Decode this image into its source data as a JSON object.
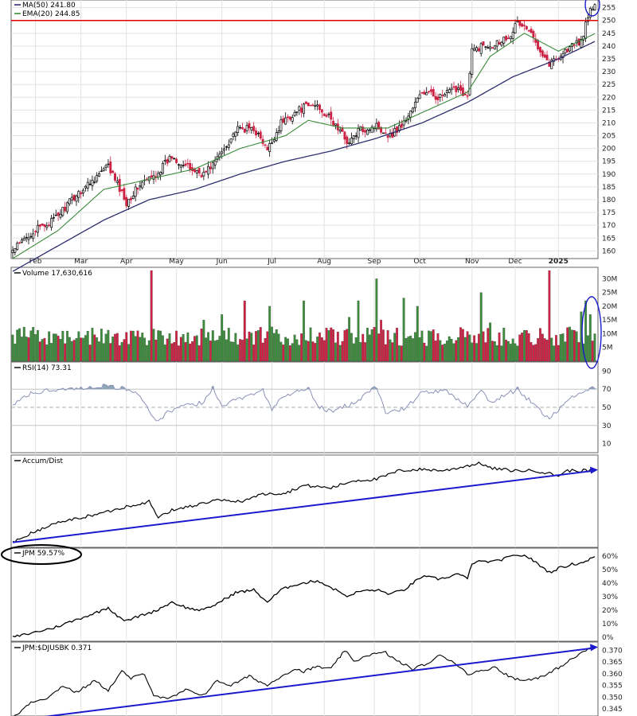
{
  "colors": {
    "up": "#3d8b3d",
    "down": "#cc2244",
    "ma50": "#2f2f6f",
    "ema20": "#3a8a3a",
    "resistance": "#e00000",
    "trend": "#1a1acc",
    "rsi": "#8a90b8",
    "rsi_fill": "#8ea6b8",
    "line": "#000000",
    "grid": "#e3e3e3",
    "panel_border": "#666666"
  },
  "chart_data": [
    {
      "panel": "price",
      "type": "candlestick",
      "legend": [
        {
          "label": "MA(50) 241.80",
          "color_key": "ma50"
        },
        {
          "label": "EMA(20) 244.85",
          "color_key": "ema20"
        }
      ],
      "x_tick_labels": [
        "Feb",
        "Mar",
        "Apr",
        "May",
        "Jun",
        "Jul",
        "Aug",
        "Sep",
        "Oct",
        "Nov",
        "Dec",
        "2025"
      ],
      "y_ticks": [
        160,
        165,
        170,
        175,
        180,
        185,
        190,
        195,
        200,
        205,
        210,
        215,
        220,
        225,
        230,
        235,
        240,
        245,
        250,
        255
      ],
      "ylim": [
        157,
        258
      ],
      "resistance_level": 250,
      "close_anchors": [
        [
          0,
          160
        ],
        [
          8,
          167
        ],
        [
          18,
          172
        ],
        [
          28,
          182
        ],
        [
          38,
          190
        ],
        [
          42,
          193
        ],
        [
          46,
          186
        ],
        [
          50,
          179
        ],
        [
          56,
          186
        ],
        [
          62,
          189
        ],
        [
          70,
          197
        ],
        [
          78,
          192
        ],
        [
          84,
          190
        ],
        [
          90,
          196
        ],
        [
          98,
          207
        ],
        [
          106,
          208
        ],
        [
          112,
          199
        ],
        [
          118,
          210
        ],
        [
          124,
          214
        ],
        [
          128,
          216
        ],
        [
          134,
          217
        ],
        [
          142,
          209
        ],
        [
          148,
          202
        ],
        [
          152,
          207
        ],
        [
          160,
          209
        ],
        [
          166,
          205
        ],
        [
          172,
          210
        ],
        [
          180,
          222
        ],
        [
          188,
          220
        ],
        [
          196,
          224
        ],
        [
          200,
          220
        ],
        [
          202,
          238
        ],
        [
          206,
          240
        ],
        [
          212,
          241
        ],
        [
          218,
          244
        ],
        [
          222,
          249
        ],
        [
          226,
          247
        ],
        [
          232,
          239
        ],
        [
          236,
          233
        ],
        [
          240,
          236
        ],
        [
          246,
          240
        ],
        [
          250,
          242
        ],
        [
          254,
          254
        ],
        [
          256,
          256
        ]
      ],
      "ma50_anchors": [
        [
          0,
          152
        ],
        [
          20,
          162
        ],
        [
          40,
          172
        ],
        [
          60,
          180
        ],
        [
          80,
          184
        ],
        [
          100,
          190
        ],
        [
          120,
          195
        ],
        [
          140,
          199
        ],
        [
          160,
          204
        ],
        [
          180,
          210
        ],
        [
          200,
          218
        ],
        [
          220,
          228
        ],
        [
          240,
          235
        ],
        [
          256,
          241.8
        ]
      ],
      "ema20_anchors": [
        [
          0,
          157
        ],
        [
          20,
          168
        ],
        [
          40,
          184
        ],
        [
          50,
          186
        ],
        [
          60,
          188
        ],
        [
          80,
          192
        ],
        [
          100,
          200
        ],
        [
          120,
          205
        ],
        [
          130,
          211
        ],
        [
          145,
          208
        ],
        [
          165,
          208
        ],
        [
          180,
          214
        ],
        [
          200,
          222
        ],
        [
          210,
          236
        ],
        [
          225,
          245
        ],
        [
          240,
          238
        ],
        [
          256,
          244.85
        ]
      ],
      "annotation": "ellipse-around-latest-price"
    },
    {
      "panel": "volume",
      "type": "bar",
      "label": "Volume 17,630,616",
      "y_tick_labels": [
        "5M",
        "10M",
        "15M",
        "20M",
        "25M",
        "30M"
      ],
      "ylim": [
        0,
        33
      ],
      "base_millions": 10,
      "spikes_millions": [
        [
          61,
          33
        ],
        [
          84,
          15
        ],
        [
          92,
          17
        ],
        [
          102,
          22
        ],
        [
          113,
          20
        ],
        [
          128,
          22
        ],
        [
          148,
          16
        ],
        [
          152,
          22
        ],
        [
          160,
          30
        ],
        [
          162,
          15
        ],
        [
          172,
          23
        ],
        [
          178,
          20
        ],
        [
          206,
          25
        ],
        [
          210,
          14
        ],
        [
          236,
          33
        ],
        [
          250,
          18
        ],
        [
          252,
          22
        ],
        [
          254,
          17
        ]
      ],
      "annotation": "ellipse-around-latest-volume"
    },
    {
      "panel": "rsi",
      "type": "line",
      "label": "RSI(14) 73.31",
      "y_tick_labels": [
        "10",
        "30",
        "50",
        "70",
        "90"
      ],
      "ylim": [
        0,
        100
      ],
      "reference_levels": [
        30,
        50,
        70
      ],
      "anchors": [
        [
          0,
          52
        ],
        [
          8,
          66
        ],
        [
          20,
          70
        ],
        [
          30,
          71
        ],
        [
          40,
          74
        ],
        [
          50,
          70
        ],
        [
          56,
          64
        ],
        [
          60,
          46
        ],
        [
          64,
          33
        ],
        [
          68,
          44
        ],
        [
          76,
          52
        ],
        [
          84,
          55
        ],
        [
          88,
          73
        ],
        [
          92,
          52
        ],
        [
          98,
          58
        ],
        [
          110,
          70
        ],
        [
          114,
          46
        ],
        [
          118,
          61
        ],
        [
          130,
          71
        ],
        [
          134,
          52
        ],
        [
          140,
          45
        ],
        [
          150,
          55
        ],
        [
          160,
          73
        ],
        [
          164,
          44
        ],
        [
          172,
          48
        ],
        [
          180,
          66
        ],
        [
          190,
          68
        ],
        [
          200,
          52
        ],
        [
          206,
          70
        ],
        [
          210,
          55
        ],
        [
          222,
          70
        ],
        [
          232,
          46
        ],
        [
          236,
          38
        ],
        [
          244,
          58
        ],
        [
          256,
          73
        ]
      ]
    },
    {
      "panel": "accum_dist",
      "type": "line",
      "label": "Accum/Dist",
      "anchors": [
        [
          0,
          4
        ],
        [
          10,
          13
        ],
        [
          20,
          20
        ],
        [
          30,
          24
        ],
        [
          40,
          28
        ],
        [
          50,
          33
        ],
        [
          60,
          37
        ],
        [
          64,
          24
        ],
        [
          70,
          30
        ],
        [
          80,
          34
        ],
        [
          90,
          38
        ],
        [
          100,
          37
        ],
        [
          110,
          43
        ],
        [
          120,
          44
        ],
        [
          128,
          50
        ],
        [
          140,
          48
        ],
        [
          150,
          54
        ],
        [
          160,
          55
        ],
        [
          170,
          62
        ],
        [
          180,
          63
        ],
        [
          190,
          62
        ],
        [
          200,
          66
        ],
        [
          206,
          68
        ],
        [
          210,
          64
        ],
        [
          220,
          62
        ],
        [
          230,
          62
        ],
        [
          240,
          58
        ],
        [
          244,
          62
        ],
        [
          256,
          62
        ]
      ],
      "trendline": [
        [
          0,
          4
        ],
        [
          256,
          62
        ]
      ]
    },
    {
      "panel": "performance",
      "type": "line",
      "label": "JPM 59.57%",
      "y_tick_labels": [
        "0%",
        "10%",
        "20%",
        "30%",
        "40%",
        "50%",
        "60%"
      ],
      "ylim": [
        0,
        63
      ],
      "anchors": [
        [
          0,
          0
        ],
        [
          8,
          3
        ],
        [
          18,
          7
        ],
        [
          28,
          13
        ],
        [
          38,
          19
        ],
        [
          42,
          22
        ],
        [
          46,
          16
        ],
        [
          50,
          12
        ],
        [
          56,
          16
        ],
        [
          62,
          19
        ],
        [
          70,
          26
        ],
        [
          78,
          21
        ],
        [
          84,
          20
        ],
        [
          90,
          25
        ],
        [
          98,
          33
        ],
        [
          106,
          35
        ],
        [
          112,
          26
        ],
        [
          118,
          35
        ],
        [
          124,
          39
        ],
        [
          128,
          40
        ],
        [
          134,
          42
        ],
        [
          142,
          35
        ],
        [
          148,
          30
        ],
        [
          152,
          34
        ],
        [
          160,
          35
        ],
        [
          166,
          32
        ],
        [
          172,
          35
        ],
        [
          180,
          45
        ],
        [
          188,
          43
        ],
        [
          196,
          47
        ],
        [
          200,
          43
        ],
        [
          202,
          55
        ],
        [
          206,
          56
        ],
        [
          212,
          56
        ],
        [
          218,
          59
        ],
        [
          222,
          61
        ],
        [
          226,
          60
        ],
        [
          232,
          53
        ],
        [
          236,
          48
        ],
        [
          240,
          51
        ],
        [
          246,
          54
        ],
        [
          250,
          55
        ],
        [
          254,
          58
        ],
        [
          256,
          59.57
        ]
      ]
    },
    {
      "panel": "relative_strength",
      "type": "line",
      "label": "JPM:$DJUSBK 0.371",
      "y_tick_labels": [
        "0.345",
        "0.350",
        "0.355",
        "0.360",
        "0.365",
        "0.370"
      ],
      "ylim": [
        0.342,
        0.3735
      ],
      "anchors": [
        [
          0,
          0.341
        ],
        [
          8,
          0.348
        ],
        [
          16,
          0.35
        ],
        [
          22,
          0.355
        ],
        [
          28,
          0.352
        ],
        [
          36,
          0.357
        ],
        [
          42,
          0.353
        ],
        [
          48,
          0.361
        ],
        [
          52,
          0.358
        ],
        [
          58,
          0.36
        ],
        [
          62,
          0.351
        ],
        [
          68,
          0.349
        ],
        [
          76,
          0.353
        ],
        [
          84,
          0.351
        ],
        [
          90,
          0.357
        ],
        [
          96,
          0.355
        ],
        [
          104,
          0.359
        ],
        [
          112,
          0.355
        ],
        [
          118,
          0.359
        ],
        [
          124,
          0.362
        ],
        [
          128,
          0.361
        ],
        [
          134,
          0.363
        ],
        [
          140,
          0.362
        ],
        [
          146,
          0.37
        ],
        [
          150,
          0.365
        ],
        [
          156,
          0.368
        ],
        [
          164,
          0.369
        ],
        [
          168,
          0.366
        ],
        [
          176,
          0.362
        ],
        [
          184,
          0.365
        ],
        [
          188,
          0.368
        ],
        [
          194,
          0.365
        ],
        [
          200,
          0.36
        ],
        [
          206,
          0.361
        ],
        [
          212,
          0.363
        ],
        [
          218,
          0.359
        ],
        [
          224,
          0.357
        ],
        [
          234,
          0.359
        ],
        [
          244,
          0.365
        ],
        [
          252,
          0.37
        ],
        [
          256,
          0.371
        ]
      ],
      "trendline": [
        [
          0,
          0.34
        ],
        [
          256,
          0.371
        ]
      ]
    }
  ]
}
